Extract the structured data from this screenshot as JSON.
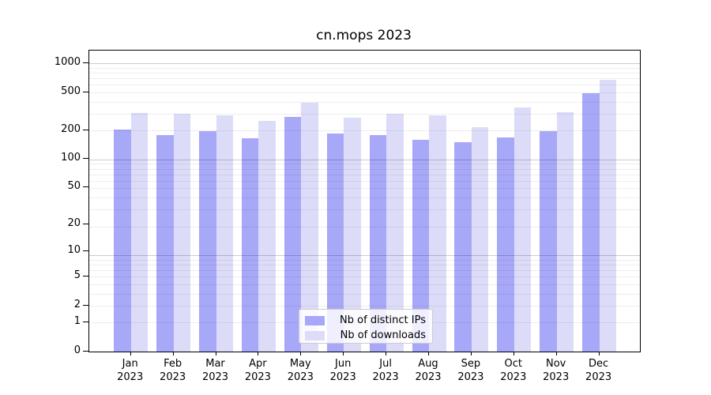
{
  "figure": {
    "title": "cn.mops 2023"
  },
  "chart_data": {
    "type": "bar",
    "title": "cn.mops 2023",
    "categories": [
      "Jan 2023",
      "Feb 2023",
      "Mar 2023",
      "Apr 2023",
      "May 2023",
      "Jun 2023",
      "Jul 2023",
      "Aug 2023",
      "Sep 2023",
      "Oct 2023",
      "Nov 2023",
      "Dec 2023"
    ],
    "series": [
      {
        "name": "Nb of distinct IPs",
        "color": "#a8a8f8",
        "values": [
          204,
          180,
          195,
          167,
          274,
          187,
          180,
          158,
          150,
          168,
          196,
          492
        ]
      },
      {
        "name": "Nb of downloads",
        "color": "#dcdcf8",
        "values": [
          307,
          301,
          287,
          253,
          389,
          271,
          301,
          288,
          216,
          349,
          312,
          676
        ]
      }
    ],
    "ylabel": "",
    "xlabel": "",
    "yscale": "log1p",
    "yticks": [
      1000,
      500,
      200,
      100,
      50,
      20,
      10,
      5,
      2,
      1,
      0
    ],
    "ylim": [
      0,
      1360
    ],
    "grid": "on",
    "legend_position": "inside-bottom-center"
  }
}
